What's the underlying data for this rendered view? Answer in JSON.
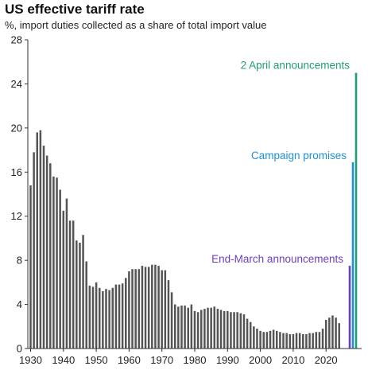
{
  "chart_data": {
    "type": "bar",
    "title": "US effective tariff rate",
    "subtitle": "%, import duties collected as a share of total import value",
    "xlabel": "",
    "ylabel": "",
    "ylim": [
      0,
      28
    ],
    "y_ticks": [
      "0",
      "4",
      "8",
      "12",
      "16",
      "20",
      "24",
      "28"
    ],
    "x_ticks": [
      "1930",
      "1940",
      "1950",
      "1960",
      "1970",
      "1980",
      "1990",
      "2000",
      "2010",
      "2020"
    ],
    "grid": false,
    "historical": {
      "color": "#555555",
      "x": [
        1930,
        1931,
        1932,
        1933,
        1934,
        1935,
        1936,
        1937,
        1938,
        1939,
        1940,
        1941,
        1942,
        1943,
        1944,
        1945,
        1946,
        1947,
        1948,
        1949,
        1950,
        1951,
        1952,
        1953,
        1954,
        1955,
        1956,
        1957,
        1958,
        1959,
        1960,
        1961,
        1962,
        1963,
        1964,
        1965,
        1966,
        1967,
        1968,
        1969,
        1970,
        1971,
        1972,
        1973,
        1974,
        1975,
        1976,
        1977,
        1978,
        1979,
        1980,
        1981,
        1982,
        1983,
        1984,
        1985,
        1986,
        1987,
        1988,
        1989,
        1990,
        1991,
        1992,
        1993,
        1994,
        1995,
        1996,
        1997,
        1998,
        1999,
        2000,
        2001,
        2002,
        2003,
        2004,
        2005,
        2006,
        2007,
        2008,
        2009,
        2010,
        2011,
        2012,
        2013,
        2014,
        2015,
        2016,
        2017,
        2018,
        2019,
        2020,
        2021,
        2022,
        2023,
        2024
      ],
      "values": [
        14.8,
        17.8,
        19.6,
        19.8,
        18.4,
        17.5,
        16.8,
        15.6,
        15.5,
        14.4,
        12.5,
        13.6,
        11.6,
        11.6,
        9.8,
        9.6,
        10.3,
        7.9,
        5.7,
        5.6,
        6.0,
        5.5,
        5.2,
        5.4,
        5.3,
        5.5,
        5.8,
        5.8,
        5.9,
        6.4,
        7.0,
        7.2,
        7.2,
        7.2,
        7.5,
        7.4,
        7.4,
        7.6,
        7.6,
        7.5,
        7.1,
        7.1,
        6.2,
        5.1,
        4.0,
        3.8,
        3.9,
        3.9,
        3.7,
        4.0,
        3.4,
        3.3,
        3.5,
        3.6,
        3.7,
        3.7,
        3.8,
        3.6,
        3.5,
        3.4,
        3.4,
        3.3,
        3.3,
        3.3,
        3.2,
        3.1,
        2.7,
        2.4,
        2.0,
        1.8,
        1.6,
        1.5,
        1.5,
        1.6,
        1.7,
        1.6,
        1.5,
        1.4,
        1.4,
        1.3,
        1.3,
        1.4,
        1.4,
        1.3,
        1.3,
        1.4,
        1.4,
        1.5,
        1.5,
        1.8,
        2.6,
        2.8,
        3.0,
        2.8,
        2.3
      ]
    },
    "scenarios": [
      {
        "label": "End-March announcements",
        "value": 7.5,
        "color": "#6b3fbf"
      },
      {
        "label": "Campaign promises",
        "value": 16.9,
        "color": "#1f8fd8"
      },
      {
        "label": "2 April announcements",
        "value": 25.0,
        "color": "#1f9e72"
      }
    ]
  }
}
